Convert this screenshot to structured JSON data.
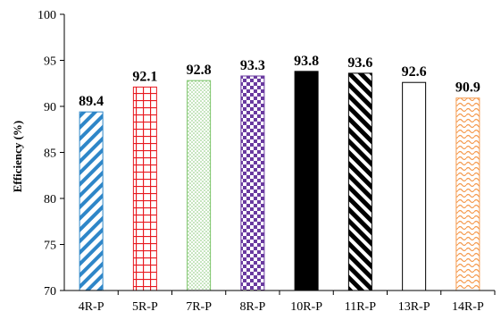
{
  "chart_data": {
    "type": "bar",
    "ylabel": "Efficiency (%)",
    "xlabel": "",
    "ylim": [
      70,
      100
    ],
    "yticks": [
      "70",
      "75",
      "80",
      "85",
      "90",
      "95",
      "100"
    ],
    "categories": [
      "4R-P",
      "5R-P",
      "7R-P",
      "8R-P",
      "10R-P",
      "11R-P",
      "13R-P",
      "14R-P"
    ],
    "values": [
      89.4,
      92.1,
      92.8,
      93.3,
      93.8,
      93.6,
      92.6,
      90.9
    ],
    "data_labels": [
      "89.4",
      "92.1",
      "92.8",
      "93.3",
      "93.8",
      "93.6",
      "92.6",
      "90.9"
    ],
    "bar_styles": [
      {
        "pattern": "diagonal-stripes",
        "color": "#2e86c8"
      },
      {
        "pattern": "grid",
        "color": "#e8191f"
      },
      {
        "pattern": "dots",
        "color": "#7cc46a"
      },
      {
        "pattern": "checkerboard",
        "color": "#6a3aa0"
      },
      {
        "pattern": "solid",
        "color": "#000000"
      },
      {
        "pattern": "bold-diagonal-stripes",
        "color": "#000000"
      },
      {
        "pattern": "empty",
        "color": "#000000"
      },
      {
        "pattern": "waves",
        "color": "#f59a4e"
      }
    ],
    "grid": false,
    "legend": "none"
  }
}
